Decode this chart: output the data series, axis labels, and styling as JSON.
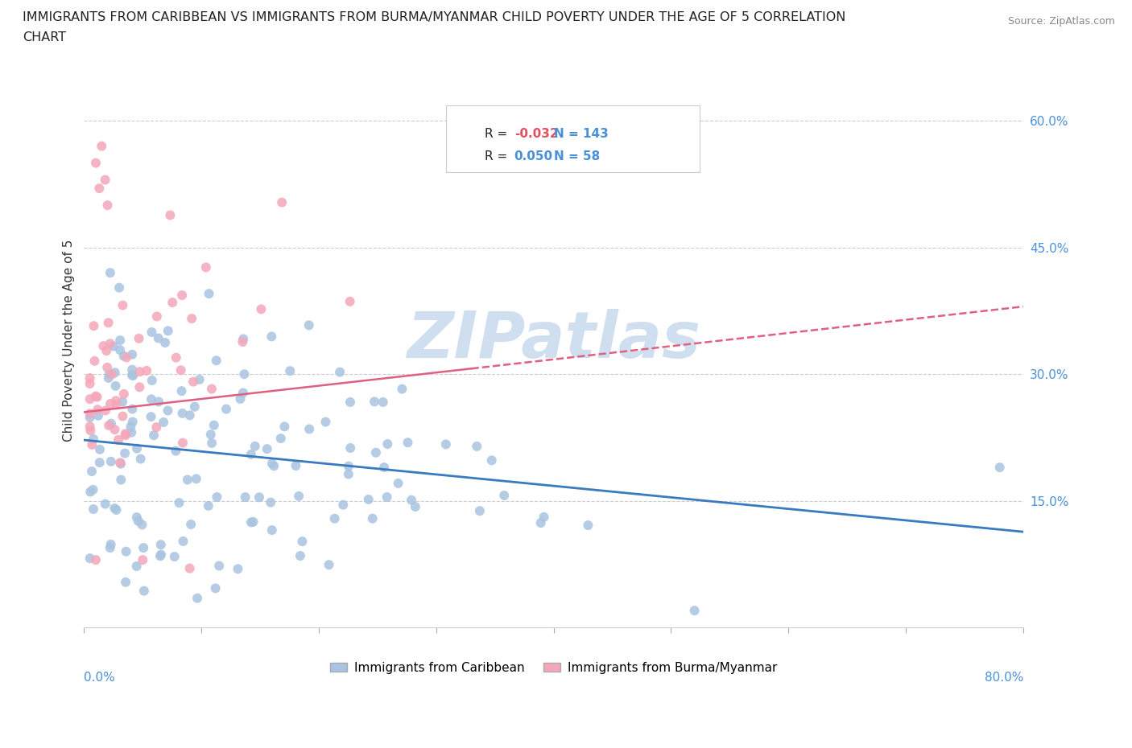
{
  "title_line1": "IMMIGRANTS FROM CARIBBEAN VS IMMIGRANTS FROM BURMA/MYANMAR CHILD POVERTY UNDER THE AGE OF 5 CORRELATION",
  "title_line2": "CHART",
  "source": "Source: ZipAtlas.com",
  "ylabel": "Child Poverty Under the Age of 5",
  "ytick_labels": [
    "15.0%",
    "30.0%",
    "45.0%",
    "60.0%"
  ],
  "ytick_values": [
    0.15,
    0.3,
    0.45,
    0.6
  ],
  "xlim": [
    0.0,
    0.8
  ],
  "ylim": [
    0.0,
    0.68
  ],
  "caribbean_R": -0.032,
  "caribbean_N": 143,
  "burma_R": 0.05,
  "burma_N": 58,
  "caribbean_color": "#a8c4e0",
  "burma_color": "#f4a7b9",
  "caribbean_line_color": "#3a7abf",
  "burma_line_color": "#e06080",
  "tick_label_color": "#4a90d9",
  "watermark": "ZIPatlas",
  "watermark_color": "#d0dff0",
  "legend_label_color": "#4a90d9"
}
